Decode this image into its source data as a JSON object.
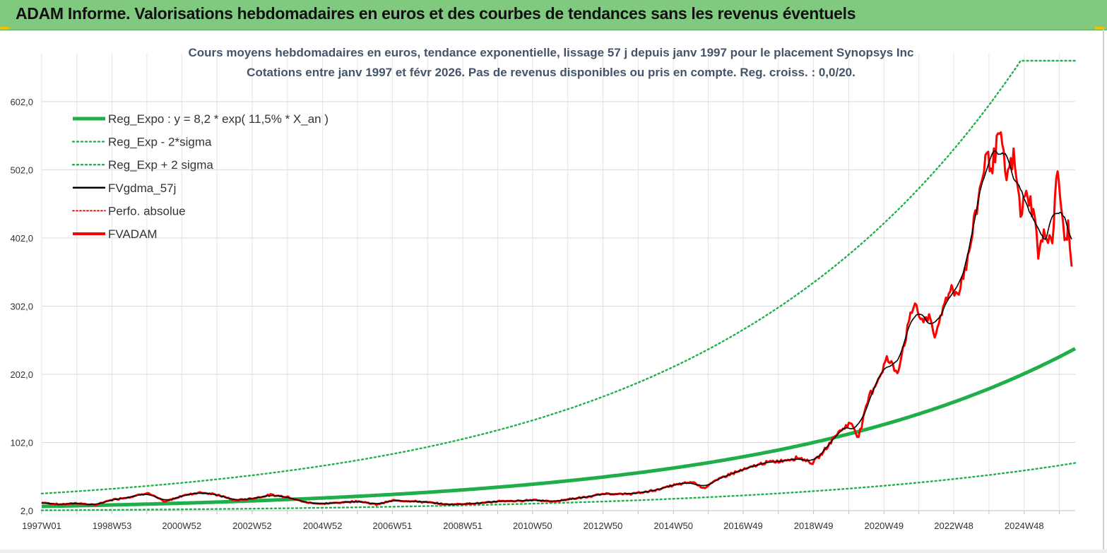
{
  "header": {
    "title": "ADAM Informe. Valorisations hebdomadaires en euros et des courbes de tendances sans les revenus éventuels"
  },
  "colors": {
    "header_bg": "#7fca7f",
    "trend_green": "#1fae4a",
    "band_green": "#22b04c",
    "smooth_black": "#000000",
    "price_red": "#ff0000",
    "perf_red": "#d00000"
  },
  "chart_data": {
    "type": "line",
    "title": "Cours moyens hebdomadaires en euros, tendance exponentielle, lissage 57 j depuis janv 1997 pour le placement Synopsys Inc",
    "subtitle": "Cotations entre janv 1997 et févr 2026. Pas de revenus disponibles ou pris en compte. Reg. croiss. : 0,0/20.",
    "xlabel": "",
    "ylabel": "",
    "grid": true,
    "legend_position": "top-left",
    "x_range": [
      "1997W01",
      "2026W06"
    ],
    "ylim": [
      2.0,
      662.0
    ],
    "y_ticks": [
      "2,0",
      "102,0",
      "202,0",
      "302,0",
      "402,0",
      "502,0",
      "602,0"
    ],
    "x_ticks": [
      "1997W01",
      "1998W53",
      "2000W52",
      "2002W52",
      "2004W52",
      "2006W51",
      "2008W51",
      "2010W50",
      "2012W50",
      "2014W50",
      "2016W49",
      "2018W49",
      "2020W49",
      "2022W48",
      "2024W48"
    ],
    "regression": {
      "a": 8.2,
      "growth": 0.115,
      "lower_factor": 0.3,
      "upper_factor": 3.3,
      "upper_cap": 662
    },
    "series": [
      {
        "name": "Reg_Expo : y = 8,2 * exp( 11,5% *  X_an )",
        "style": "thick-green"
      },
      {
        "name": "Reg_Exp - 2*sigma",
        "style": "dotted-green"
      },
      {
        "name": "Reg_Exp + 2 sigma",
        "style": "dotted-green"
      },
      {
        "name": "FVgdma_57j",
        "style": "black"
      },
      {
        "name": "Perfo. absolue",
        "style": "dotted-red"
      },
      {
        "name": "FVADAM",
        "style": "red",
        "points": [
          [
            1997.0,
            14
          ],
          [
            1997.5,
            11
          ],
          [
            1998.0,
            13
          ],
          [
            1998.5,
            10
          ],
          [
            1999.0,
            18
          ],
          [
            1999.5,
            22
          ],
          [
            2000.0,
            28
          ],
          [
            2000.5,
            15
          ],
          [
            2001.0,
            24
          ],
          [
            2001.5,
            29
          ],
          [
            2002.0,
            25
          ],
          [
            2002.5,
            17
          ],
          [
            2003.0,
            20
          ],
          [
            2003.5,
            25
          ],
          [
            2004.0,
            22
          ],
          [
            2004.5,
            14
          ],
          [
            2005.0,
            12
          ],
          [
            2005.5,
            14
          ],
          [
            2006.0,
            16
          ],
          [
            2006.5,
            11
          ],
          [
            2007.0,
            17
          ],
          [
            2007.5,
            16
          ],
          [
            2008.0,
            14
          ],
          [
            2008.5,
            11
          ],
          [
            2009.0,
            12
          ],
          [
            2009.5,
            13
          ],
          [
            2010.0,
            16
          ],
          [
            2010.5,
            16
          ],
          [
            2011.0,
            18
          ],
          [
            2011.5,
            15
          ],
          [
            2012.0,
            19
          ],
          [
            2012.5,
            22
          ],
          [
            2013.0,
            27
          ],
          [
            2013.5,
            26
          ],
          [
            2014.0,
            28
          ],
          [
            2014.5,
            33
          ],
          [
            2015.0,
            40
          ],
          [
            2015.5,
            44
          ],
          [
            2015.8,
            35
          ],
          [
            2016.0,
            42
          ],
          [
            2016.5,
            55
          ],
          [
            2017.0,
            63
          ],
          [
            2017.5,
            72
          ],
          [
            2018.0,
            75
          ],
          [
            2018.5,
            80
          ],
          [
            2018.9,
            72
          ],
          [
            2019.2,
            88
          ],
          [
            2019.5,
            110
          ],
          [
            2019.8,
            125
          ],
          [
            2020.0,
            130
          ],
          [
            2020.2,
            110
          ],
          [
            2020.5,
            170
          ],
          [
            2020.8,
            200
          ],
          [
            2021.0,
            225
          ],
          [
            2021.3,
            205
          ],
          [
            2021.5,
            250
          ],
          [
            2021.8,
            310
          ],
          [
            2022.0,
            275
          ],
          [
            2022.2,
            290
          ],
          [
            2022.4,
            255
          ],
          [
            2022.6,
            300
          ],
          [
            2022.8,
            330
          ],
          [
            2023.0,
            320
          ],
          [
            2023.3,
            370
          ],
          [
            2023.6,
            460
          ],
          [
            2023.8,
            520
          ],
          [
            2024.0,
            510
          ],
          [
            2024.2,
            555
          ],
          [
            2024.4,
            490
          ],
          [
            2024.6,
            520
          ],
          [
            2024.8,
            440
          ],
          [
            2025.0,
            470
          ],
          [
            2025.2,
            430
          ],
          [
            2025.3,
            380
          ],
          [
            2025.5,
            410
          ],
          [
            2025.7,
            400
          ],
          [
            2025.85,
            505
          ],
          [
            2025.95,
            450
          ],
          [
            2026.05,
            390
          ],
          [
            2026.15,
            420
          ],
          [
            2026.25,
            360
          ]
        ]
      }
    ]
  }
}
